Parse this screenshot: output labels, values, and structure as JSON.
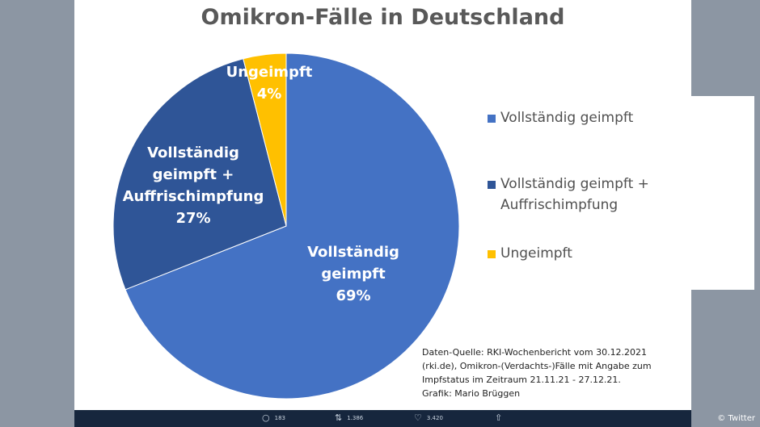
{
  "chart_data": {
    "type": "pie",
    "title": "Omikron-Fälle in Deutschland",
    "slices": [
      {
        "label": "Vollständig geimpft",
        "value": 69,
        "color": "#4472c4",
        "data_label": [
          "Vollständig",
          "geimpft",
          "69%"
        ]
      },
      {
        "label": "Vollständig geimpft + Auffrischimpfung",
        "value": 27,
        "color": "#2f5597",
        "data_label": [
          "Vollständig",
          "geimpft +",
          "Auffrischimpfung",
          "27%"
        ]
      },
      {
        "label": "Ungeimpft",
        "value": 4,
        "color": "#ffc000",
        "data_label": [
          "Ungeimpft",
          "4%"
        ]
      }
    ],
    "legend": {
      "placement": "right",
      "entries": [
        "Vollständig geimpft",
        "Vollständig geimpft +\nAuffrischimpfung",
        "Ungeimpft"
      ]
    },
    "source": "Daten-Quelle: RKI-Wochenbericht vom 30.12.2021\n(rki.de), Omikron-(Verdachts-)Fälle mit Angabe zum\nImpfstatus im Zeitraum 21.11.21 - 27.12.21.\nGrafik: Mario Brüggen"
  },
  "tweet_actions": {
    "reply_icon": "reply-icon",
    "replies": "183",
    "retweet_icon": "retweet-icon",
    "retweets": "1.386",
    "like_icon": "heart-icon",
    "likes": "3.420",
    "share_icon": "share-icon"
  },
  "credit": "© Twitter"
}
